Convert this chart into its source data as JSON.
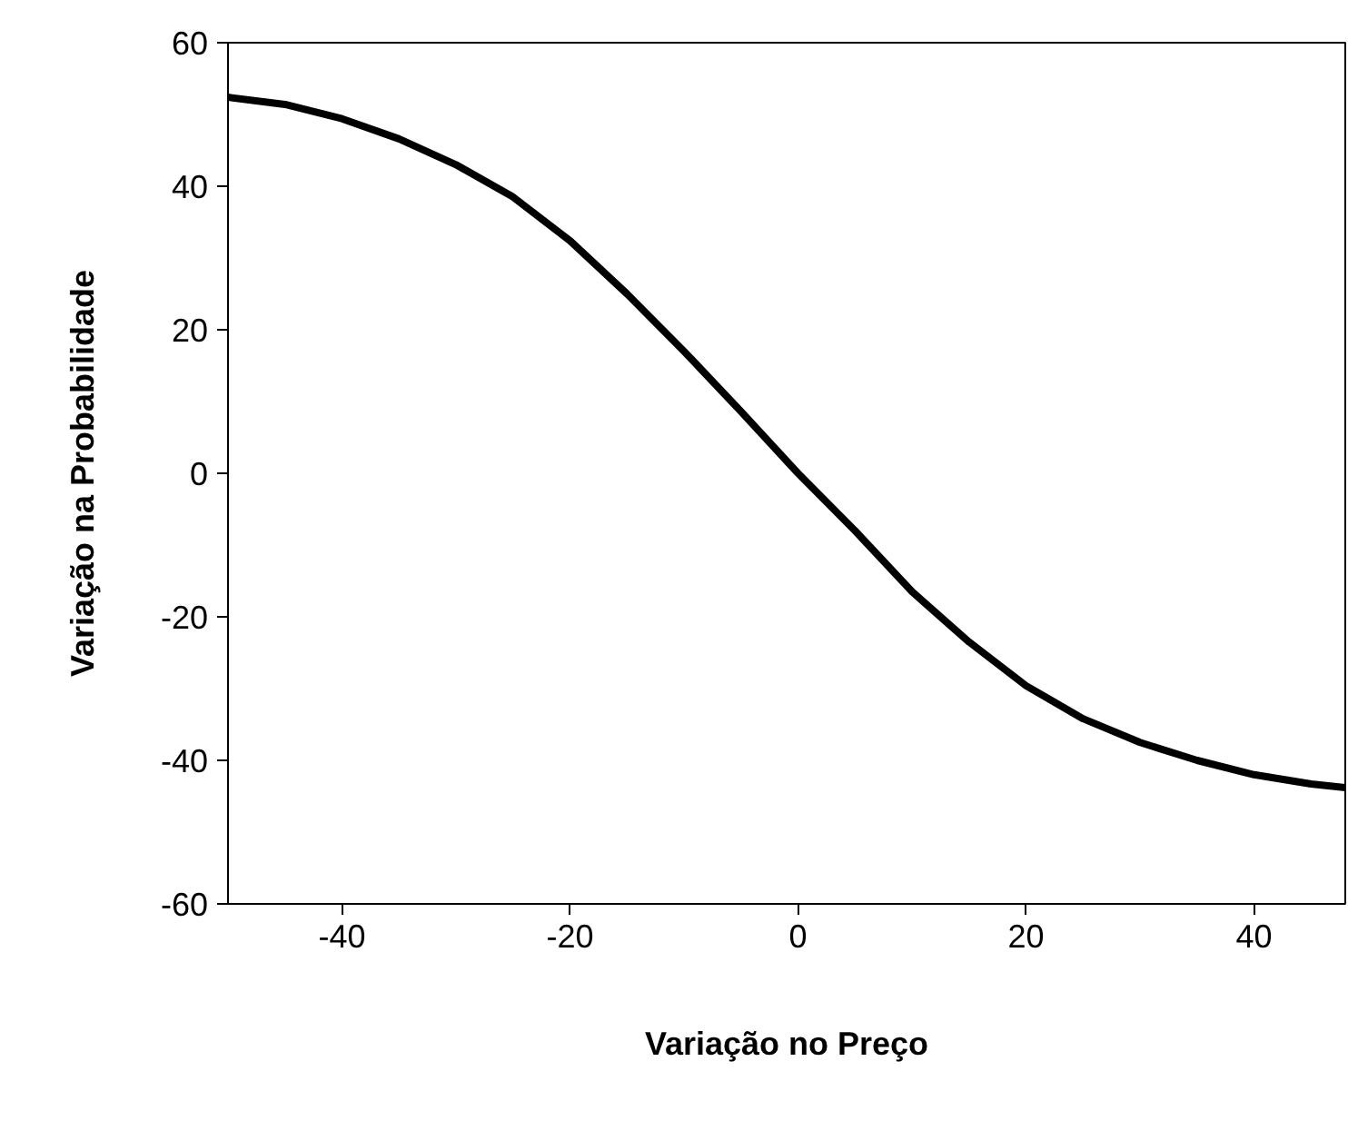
{
  "chart_data": {
    "type": "line",
    "xlabel": "Variação no Preço",
    "ylabel": "Variação na Probabilidade",
    "x": [
      -50,
      -45,
      -40,
      -35,
      -30,
      -25,
      -20,
      -15,
      -10,
      -5,
      0,
      5,
      10,
      15,
      20,
      25,
      30,
      35,
      40,
      45,
      48
    ],
    "series": [
      {
        "color": "#000000",
        "values": [
          52.4,
          51.4,
          49.4,
          46.6,
          43,
          38.5,
          32.4,
          25,
          17,
          8.6,
          0,
          -8,
          -16.5,
          -23.5,
          -29.6,
          -34.2,
          -37.5,
          -40,
          -42,
          -43.3,
          -43.8
        ]
      }
    ],
    "xlim": [
      -50,
      48
    ],
    "ylim": [
      -60,
      60
    ],
    "xticks": [
      -40,
      -20,
      0,
      20,
      40
    ],
    "yticks": [
      -60,
      -40,
      -20,
      0,
      20,
      40,
      60
    ],
    "grid": false,
    "marker": "none",
    "line_style": "solid"
  }
}
